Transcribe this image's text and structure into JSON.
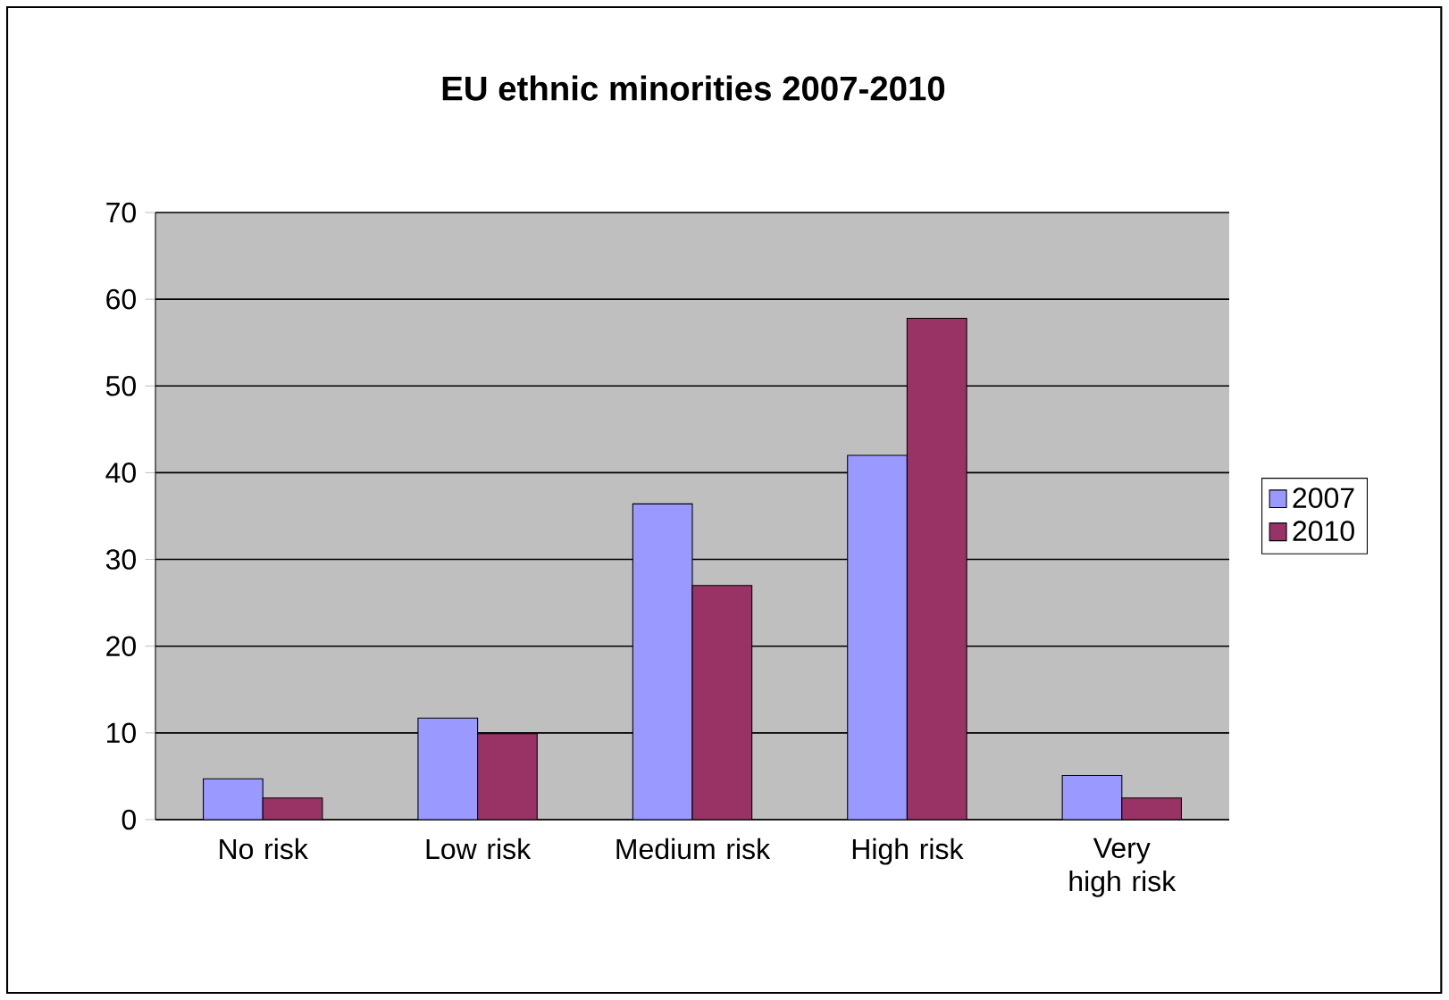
{
  "chart_data": {
    "type": "bar",
    "title": "EU ethnic minorities 2007-2010",
    "categories": [
      "No risk",
      "Low  risk",
      "Medium risk",
      "High risk",
      "Very high risk"
    ],
    "series": [
      {
        "name": "2007",
        "color": "#9999ff",
        "values": [
          4.7,
          11.7,
          36.4,
          42,
          5.1
        ]
      },
      {
        "name": "2010",
        "color": "#993366",
        "values": [
          2.5,
          9.9,
          27,
          57.8,
          2.5
        ]
      }
    ],
    "ylim": [
      0,
      70
    ],
    "yticks": [
      0,
      10,
      20,
      30,
      40,
      50,
      60,
      70
    ],
    "grid": "y",
    "legend": "right"
  }
}
